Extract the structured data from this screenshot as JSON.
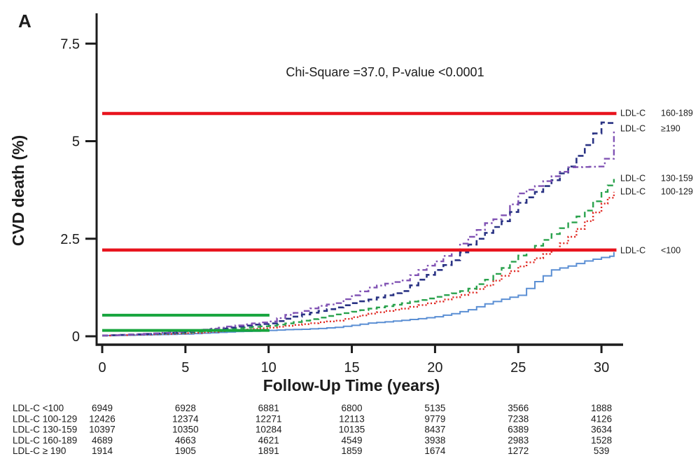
{
  "figure": {
    "panel_label": "A",
    "background": "#ffffff"
  },
  "chart_data": {
    "type": "line",
    "subtype": "cumulative-incidence-step-curves",
    "title": "",
    "annotation": "Chi-Square =37.0, P-value <0.0001",
    "xlabel": "Follow-Up Time (years)",
    "ylabel": "CVD death (%)",
    "xlim": [
      0,
      31.3
    ],
    "ylim": [
      0,
      7.9
    ],
    "x_ticks": [
      0,
      5,
      10,
      15,
      20,
      25,
      30
    ],
    "y_ticks": [
      0,
      2.5,
      5,
      7.5
    ],
    "grid": false,
    "legend_position": "curve-end-labels-right",
    "series": [
      {
        "name": "LDL-C <100",
        "color": "#5b8fd4",
        "line_style": "solid",
        "width": 2,
        "points": [
          [
            0,
            0.02
          ],
          [
            2,
            0.03
          ],
          [
            4,
            0.05
          ],
          [
            5,
            0.06
          ],
          [
            6,
            0.08
          ],
          [
            7,
            0.1
          ],
          [
            8,
            0.12
          ],
          [
            9,
            0.13
          ],
          [
            10,
            0.15
          ],
          [
            11,
            0.17
          ],
          [
            12,
            0.18
          ],
          [
            13,
            0.2
          ],
          [
            14,
            0.23
          ],
          [
            15,
            0.28
          ],
          [
            16,
            0.34
          ],
          [
            17,
            0.37
          ],
          [
            18,
            0.41
          ],
          [
            19,
            0.45
          ],
          [
            20,
            0.5
          ],
          [
            21,
            0.58
          ],
          [
            22,
            0.68
          ],
          [
            23,
            0.83
          ],
          [
            24,
            0.95
          ],
          [
            25,
            1.05
          ],
          [
            26,
            1.4
          ],
          [
            27,
            1.7
          ],
          [
            28,
            1.8
          ],
          [
            29,
            1.93
          ],
          [
            30,
            2.02
          ],
          [
            30.5,
            2.05
          ],
          [
            30.75,
            2.16
          ]
        ]
      },
      {
        "name": "LDL-C 100-129",
        "color": "#e0251f",
        "line_style": "dotted",
        "width": 2.4,
        "points": [
          [
            0,
            0.02
          ],
          [
            2,
            0.04
          ],
          [
            4,
            0.06
          ],
          [
            5,
            0.08
          ],
          [
            6,
            0.1
          ],
          [
            7,
            0.13
          ],
          [
            8,
            0.16
          ],
          [
            9,
            0.19
          ],
          [
            10,
            0.22
          ],
          [
            11,
            0.27
          ],
          [
            12,
            0.31
          ],
          [
            13,
            0.36
          ],
          [
            14,
            0.4
          ],
          [
            15,
            0.49
          ],
          [
            16,
            0.58
          ],
          [
            17,
            0.65
          ],
          [
            18,
            0.71
          ],
          [
            19,
            0.8
          ],
          [
            20,
            0.89
          ],
          [
            21,
            1.0
          ],
          [
            22,
            1.12
          ],
          [
            23,
            1.3
          ],
          [
            24,
            1.55
          ],
          [
            25,
            1.79
          ],
          [
            26,
            2.0
          ],
          [
            27,
            2.22
          ],
          [
            28,
            2.55
          ],
          [
            29,
            2.95
          ],
          [
            30,
            3.4
          ],
          [
            30.75,
            3.7
          ]
        ]
      },
      {
        "name": "LDL-C 130-159",
        "color": "#2aa24d",
        "line_style": "dashed",
        "width": 2.4,
        "points": [
          [
            0,
            0.02
          ],
          [
            2,
            0.05
          ],
          [
            4,
            0.08
          ],
          [
            5,
            0.1
          ],
          [
            6,
            0.13
          ],
          [
            7,
            0.17
          ],
          [
            8,
            0.21
          ],
          [
            9,
            0.24
          ],
          [
            10,
            0.27
          ],
          [
            11,
            0.33
          ],
          [
            12,
            0.4
          ],
          [
            13,
            0.48
          ],
          [
            14,
            0.56
          ],
          [
            15,
            0.63
          ],
          [
            16,
            0.71
          ],
          [
            17,
            0.77
          ],
          [
            18,
            0.85
          ],
          [
            19,
            0.93
          ],
          [
            20,
            1.01
          ],
          [
            21,
            1.1
          ],
          [
            22,
            1.22
          ],
          [
            23,
            1.45
          ],
          [
            24,
            1.75
          ],
          [
            25,
            2.07
          ],
          [
            26,
            2.32
          ],
          [
            27,
            2.62
          ],
          [
            28,
            2.92
          ],
          [
            29,
            3.22
          ],
          [
            30,
            3.7
          ],
          [
            30.75,
            4.03
          ]
        ]
      },
      {
        "name": "LDL-C 160-189",
        "color": "#2a3384",
        "line_style": "dashed",
        "width": 2.6,
        "points": [
          [
            0,
            0.02
          ],
          [
            2,
            0.05
          ],
          [
            4,
            0.09
          ],
          [
            5,
            0.12
          ],
          [
            6,
            0.16
          ],
          [
            7,
            0.2
          ],
          [
            8,
            0.25
          ],
          [
            9,
            0.3
          ],
          [
            10,
            0.33
          ],
          [
            11,
            0.45
          ],
          [
            12,
            0.56
          ],
          [
            13,
            0.65
          ],
          [
            14,
            0.74
          ],
          [
            15,
            0.85
          ],
          [
            16,
            0.94
          ],
          [
            17,
            1.05
          ],
          [
            18,
            1.16
          ],
          [
            19,
            1.45
          ],
          [
            20,
            1.7
          ],
          [
            21,
            1.95
          ],
          [
            22,
            2.35
          ],
          [
            23,
            2.65
          ],
          [
            24,
            2.95
          ],
          [
            25,
            3.42
          ],
          [
            26,
            3.7
          ],
          [
            27,
            4.0
          ],
          [
            28,
            4.35
          ],
          [
            29,
            4.9
          ],
          [
            29.5,
            5.2
          ],
          [
            30,
            5.48
          ],
          [
            30.75,
            5.45
          ]
        ]
      },
      {
        "name": "LDL-C ≥190",
        "color": "#8153b4",
        "line_style": "dash-dot",
        "width": 2.4,
        "points": [
          [
            0,
            0.02
          ],
          [
            2,
            0.05
          ],
          [
            4,
            0.1
          ],
          [
            5,
            0.13
          ],
          [
            6,
            0.17
          ],
          [
            7,
            0.22
          ],
          [
            8,
            0.28
          ],
          [
            9,
            0.33
          ],
          [
            10,
            0.38
          ],
          [
            11,
            0.55
          ],
          [
            12,
            0.65
          ],
          [
            13,
            0.78
          ],
          [
            14,
            0.85
          ],
          [
            15,
            1.05
          ],
          [
            16,
            1.25
          ],
          [
            17,
            1.35
          ],
          [
            18,
            1.43
          ],
          [
            19,
            1.7
          ],
          [
            20,
            1.92
          ],
          [
            21,
            2.2
          ],
          [
            22,
            2.55
          ],
          [
            23,
            2.9
          ],
          [
            24,
            3.1
          ],
          [
            25,
            3.66
          ],
          [
            26,
            3.85
          ],
          [
            27,
            4.1
          ],
          [
            28,
            4.33
          ],
          [
            29.7,
            4.35
          ],
          [
            30.2,
            4.55
          ],
          [
            30.75,
            5.3
          ]
        ]
      }
    ],
    "right_labels": [
      {
        "group": "LDL-C",
        "range": "160-189",
        "y_value": 5.73
      },
      {
        "group": "LDL-C",
        "range": "≥190",
        "y_value": 5.33
      },
      {
        "group": "LDL-C",
        "range": "130-159",
        "y_value": 4.06
      },
      {
        "group": "LDL-C",
        "range": "100-129",
        "y_value": 3.72
      },
      {
        "group": "LDL-C",
        "range": "<100",
        "y_value": 2.21
      }
    ],
    "reference_lines": [
      {
        "color": "#e8141e",
        "y_value": 5.71,
        "x_from": 0,
        "x_to": 30.9,
        "width": 4.5
      },
      {
        "color": "#e8141e",
        "y_value": 2.21,
        "x_from": 0,
        "x_to": 30.9,
        "width": 4.5
      },
      {
        "color": "#17a53e",
        "y_value": 0.54,
        "x_from": 0,
        "x_to": 10.05,
        "width": 4
      },
      {
        "color": "#17a53e",
        "y_value": 0.15,
        "x_from": 0,
        "x_to": 10.05,
        "width": 4
      }
    ]
  },
  "risk_table": {
    "time_points": [
      0,
      5,
      10,
      15,
      20,
      25,
      30
    ],
    "rows": [
      {
        "label": "LDL-C <100",
        "counts": [
          "6949",
          "6928",
          "6881",
          "6800",
          "5135",
          "3566",
          "1888"
        ]
      },
      {
        "label": "LDL-C 100-129",
        "counts": [
          "12426",
          "12374",
          "12271",
          "12113",
          "9779",
          "7238",
          "4126"
        ]
      },
      {
        "label": "LDL-C 130-159",
        "counts": [
          "10397",
          "10350",
          "10284",
          "10135",
          "8437",
          "6389",
          "3634"
        ]
      },
      {
        "label": "LDL-C 160-189",
        "counts": [
          "4689",
          "4663",
          "4621",
          "4549",
          "3938",
          "2983",
          "1528"
        ]
      },
      {
        "label": "LDL-C ≥ 190",
        "counts": [
          "1914",
          "1905",
          "1891",
          "1859",
          "1674",
          "1272",
          "539"
        ]
      }
    ]
  }
}
